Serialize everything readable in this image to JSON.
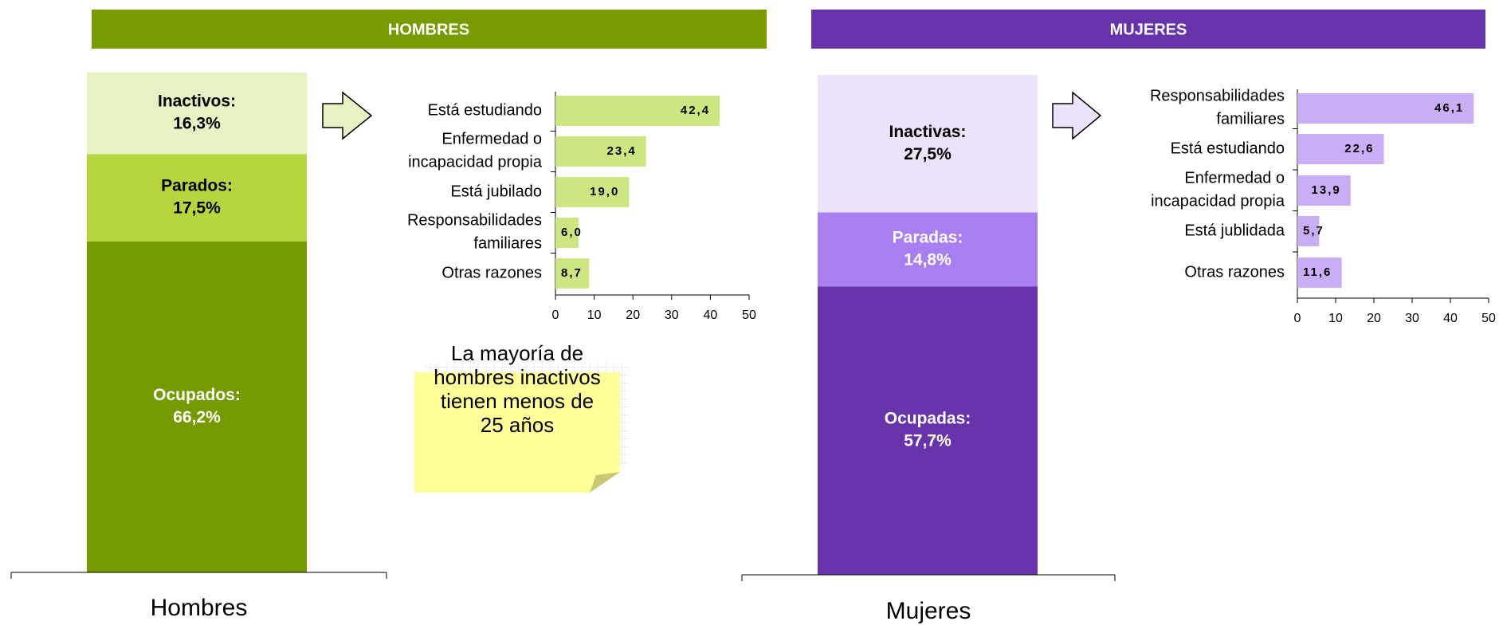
{
  "headers": [
    "HOMBRES",
    "MUJERES"
  ],
  "note": "La mayoría de\nhombres inactivos\ntienen menos de\n25 años",
  "chart_data": [
    {
      "type": "stacked_bar",
      "categories": [
        "Hombres"
      ],
      "series": [
        {
          "name": "Ocupados:",
          "color": "#759a00",
          "values": [
            66.2
          ],
          "value_labels": [
            "66,2%"
          ]
        },
        {
          "name": "Parados:",
          "color": "#b5d63e",
          "values": [
            17.5
          ],
          "value_labels": [
            "17,5%"
          ]
        },
        {
          "name": "Inactivos:",
          "color": "#e6f2c4",
          "values": [
            16.3
          ],
          "value_labels": [
            "16,3%"
          ]
        }
      ]
    },
    {
      "type": "hbar",
      "color": "#cde682",
      "categories": [
        "Está estudiando",
        "Enfermedad o\nincapacidad propia",
        "Está jubilado",
        "Responsabilidades\nfamiliares",
        "Otras razones"
      ],
      "values": [
        42.4,
        23.4,
        19.0,
        6.0,
        8.7
      ],
      "value_labels": [
        "42,4",
        "23,4",
        "19,0",
        "6,0",
        "8,7"
      ],
      "xlim": [
        0,
        50
      ],
      "xticks": [
        0,
        10,
        20,
        30,
        40,
        50
      ]
    },
    {
      "type": "stacked_bar",
      "categories": [
        "Mujeres"
      ],
      "series": [
        {
          "name": "Ocupadas:",
          "color": "#6633aa",
          "values": [
            57.7
          ],
          "value_labels": [
            "57,7%"
          ]
        },
        {
          "name": "Paradas:",
          "color": "#a87ff0",
          "values": [
            14.8
          ],
          "value_labels": [
            "14,8%"
          ]
        },
        {
          "name": "Inactivas:",
          "color": "#ece3fb",
          "values": [
            27.5
          ],
          "value_labels": [
            "27,5%"
          ]
        }
      ]
    },
    {
      "type": "hbar",
      "color": "#c9aef5",
      "categories": [
        "Responsabilidades\nfamiliares",
        "Está estudiando",
        "Enfermedad o\nincapacidad propia",
        "Está jublidada",
        "Otras razones"
      ],
      "values": [
        46.1,
        22.6,
        13.9,
        5.7,
        11.6
      ],
      "value_labels": [
        "46,1",
        "22,6",
        "13,9",
        "5,7",
        "11,6"
      ],
      "xlim": [
        0,
        50
      ],
      "xticks": [
        0,
        10,
        20,
        30,
        40,
        50
      ]
    }
  ]
}
